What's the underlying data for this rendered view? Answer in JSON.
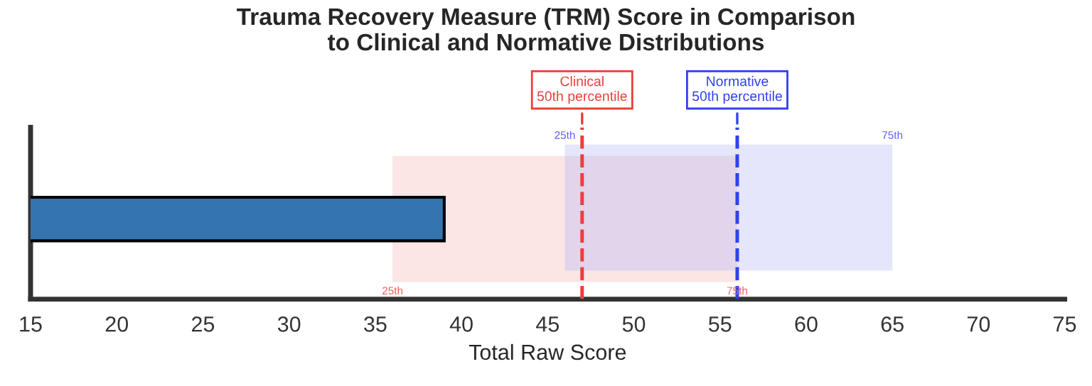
{
  "chart_data": {
    "type": "bar",
    "orientation": "horizontal",
    "title": "Trauma Recovery Measure (TRM) Score in Comparison\nto Clinical and Normative Distributions",
    "xlabel": "Total Raw Score",
    "categories": [
      null
    ],
    "values": [
      39
    ],
    "color": "#3474b0",
    "xlim": [
      15,
      75
    ],
    "xticks": [
      15,
      20,
      25,
      30,
      35,
      40,
      45,
      50,
      55,
      60,
      65,
      70,
      75
    ],
    "bands": [
      {
        "axis": "x",
        "from": 36,
        "to": 56,
        "color": "#f4b4b4"
      },
      {
        "axis": "x",
        "from": 46,
        "to": 65,
        "color": "#b4b4f4"
      }
    ],
    "ref_lines": [
      {
        "axis": "x",
        "value": 47,
        "label": "Clinical\n50th percentile",
        "color": "#e8403a",
        "line_style": "dashed"
      },
      {
        "axis": "x",
        "value": 56,
        "label": "Normative\n50th percentile",
        "color": "#3040f0",
        "line_style": "dashed"
      }
    ],
    "annotations": [
      "25th",
      "75th",
      "25th",
      "75th"
    ],
    "grid": false,
    "legend": false
  }
}
